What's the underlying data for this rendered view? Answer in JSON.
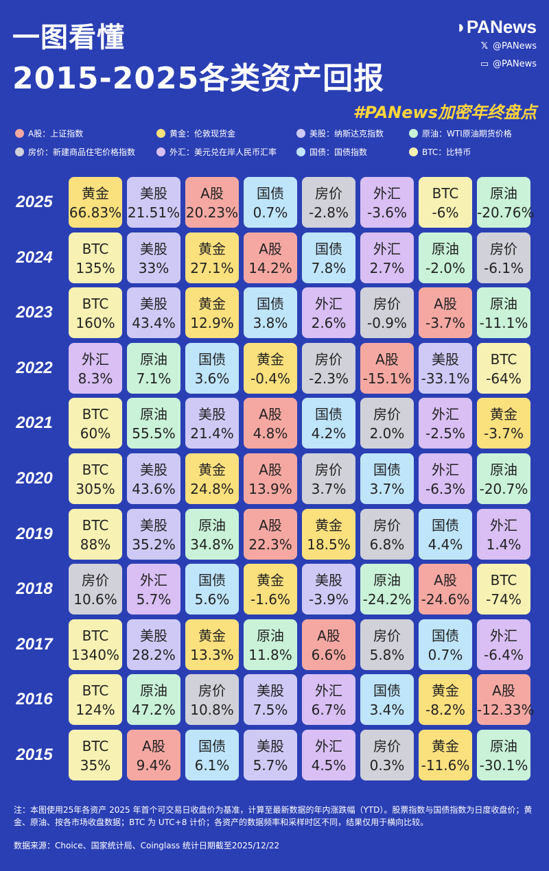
{
  "header": {
    "title_line1": "一图看懂",
    "title_line2": "2015-2025各类资产回报",
    "brand": "PANews",
    "social_x": "@PANews",
    "social_m": "@PANews",
    "hashtag": "#PANews加密年终盘点"
  },
  "colors": {
    "background": "#2a3fb4",
    "黄金": "#fbe07e",
    "美股": "#cfc9f6",
    "A股": "#f5a8a2",
    "国债": "#bfe5fb",
    "房价": "#d1d1d9",
    "外汇": "#d9bff4",
    "BTC": "#f7f2b3",
    "原油": "#c9f2d8"
  },
  "legend": [
    {
      "key": "A股",
      "label": "A股：上证指数"
    },
    {
      "key": "黄金",
      "label": "黄金：伦敦现货金"
    },
    {
      "key": "美股",
      "label": "美股：纳斯达克指数"
    },
    {
      "key": "原油",
      "label": "原油：WTI原油期货价格"
    },
    {
      "key": "房价",
      "label": "房价：新建商品住宅价格指数"
    },
    {
      "key": "外汇",
      "label": "外汇：美元兑在岸人民币汇率"
    },
    {
      "key": "国债",
      "label": "国债：国债指数"
    },
    {
      "key": "BTC",
      "label": "BTC：比特币"
    }
  ],
  "chart_data": {
    "type": "table",
    "title": "2015-2025各类资产回报",
    "rows": [
      {
        "year": "2025",
        "cells": [
          {
            "asset": "黄金",
            "value": "66.83%"
          },
          {
            "asset": "美股",
            "value": "21.51%"
          },
          {
            "asset": "A股",
            "value": "20.23%"
          },
          {
            "asset": "国债",
            "value": "0.7%"
          },
          {
            "asset": "房价",
            "value": "-2.8%"
          },
          {
            "asset": "外汇",
            "value": "-3.6%"
          },
          {
            "asset": "BTC",
            "value": "-6%"
          },
          {
            "asset": "原油",
            "value": "-20.76%"
          }
        ]
      },
      {
        "year": "2024",
        "cells": [
          {
            "asset": "BTC",
            "value": "135%"
          },
          {
            "asset": "美股",
            "value": "33%"
          },
          {
            "asset": "黄金",
            "value": "27.1%"
          },
          {
            "asset": "A股",
            "value": "14.2%"
          },
          {
            "asset": "国债",
            "value": "7.8%"
          },
          {
            "asset": "外汇",
            "value": "2.7%"
          },
          {
            "asset": "原油",
            "value": "-2.0%"
          },
          {
            "asset": "房价",
            "value": "-6.1%"
          }
        ]
      },
      {
        "year": "2023",
        "cells": [
          {
            "asset": "BTC",
            "value": "160%"
          },
          {
            "asset": "美股",
            "value": "43.4%"
          },
          {
            "asset": "黄金",
            "value": "12.9%"
          },
          {
            "asset": "国债",
            "value": "3.8%"
          },
          {
            "asset": "外汇",
            "value": "2.6%"
          },
          {
            "asset": "房价",
            "value": "-0.9%"
          },
          {
            "asset": "A股",
            "value": "-3.7%"
          },
          {
            "asset": "原油",
            "value": "-11.1%"
          }
        ]
      },
      {
        "year": "2022",
        "cells": [
          {
            "asset": "外汇",
            "value": "8.3%"
          },
          {
            "asset": "原油",
            "value": "7.1%"
          },
          {
            "asset": "国债",
            "value": "3.6%"
          },
          {
            "asset": "黄金",
            "value": "-0.4%"
          },
          {
            "asset": "房价",
            "value": "-2.3%"
          },
          {
            "asset": "A股",
            "value": "-15.1%"
          },
          {
            "asset": "美股",
            "value": "-33.1%"
          },
          {
            "asset": "BTC",
            "value": "-64%"
          }
        ]
      },
      {
        "year": "2021",
        "cells": [
          {
            "asset": "BTC",
            "value": "60%"
          },
          {
            "asset": "原油",
            "value": "55.5%"
          },
          {
            "asset": "美股",
            "value": "21.4%"
          },
          {
            "asset": "A股",
            "value": "4.8%"
          },
          {
            "asset": "国债",
            "value": "4.2%"
          },
          {
            "asset": "房价",
            "value": "2.0%"
          },
          {
            "asset": "外汇",
            "value": "-2.5%"
          },
          {
            "asset": "黄金",
            "value": "-3.7%"
          }
        ]
      },
      {
        "year": "2020",
        "cells": [
          {
            "asset": "BTC",
            "value": "305%"
          },
          {
            "asset": "美股",
            "value": "43.6%"
          },
          {
            "asset": "黄金",
            "value": "24.8%"
          },
          {
            "asset": "A股",
            "value": "13.9%"
          },
          {
            "asset": "房价",
            "value": "3.7%"
          },
          {
            "asset": "国债",
            "value": "3.7%"
          },
          {
            "asset": "外汇",
            "value": "-6.3%"
          },
          {
            "asset": "原油",
            "value": "-20.7%"
          }
        ]
      },
      {
        "year": "2019",
        "cells": [
          {
            "asset": "BTC",
            "value": "88%"
          },
          {
            "asset": "美股",
            "value": "35.2%"
          },
          {
            "asset": "原油",
            "value": "34.8%"
          },
          {
            "asset": "A股",
            "value": "22.3%"
          },
          {
            "asset": "黄金",
            "value": "18.5%"
          },
          {
            "asset": "房价",
            "value": "6.8%"
          },
          {
            "asset": "国债",
            "value": "4.4%"
          },
          {
            "asset": "外汇",
            "value": "1.4%"
          }
        ]
      },
      {
        "year": "2018",
        "cells": [
          {
            "asset": "房价",
            "value": "10.6%"
          },
          {
            "asset": "外汇",
            "value": "5.7%"
          },
          {
            "asset": "国债",
            "value": "5.6%"
          },
          {
            "asset": "黄金",
            "value": "-1.6%"
          },
          {
            "asset": "美股",
            "value": "-3.9%"
          },
          {
            "asset": "原油",
            "value": "-24.2%"
          },
          {
            "asset": "A股",
            "value": "-24.6%"
          },
          {
            "asset": "BTC",
            "value": "-74%"
          }
        ]
      },
      {
        "year": "2017",
        "cells": [
          {
            "asset": "BTC",
            "value": "1340%"
          },
          {
            "asset": "美股",
            "value": "28.2%"
          },
          {
            "asset": "黄金",
            "value": "13.3%"
          },
          {
            "asset": "原油",
            "value": "11.8%"
          },
          {
            "asset": "A股",
            "value": "6.6%"
          },
          {
            "asset": "房价",
            "value": "5.8%"
          },
          {
            "asset": "国债",
            "value": "0.7%"
          },
          {
            "asset": "外汇",
            "value": "-6.4%"
          }
        ]
      },
      {
        "year": "2016",
        "cells": [
          {
            "asset": "BTC",
            "value": "124%"
          },
          {
            "asset": "原油",
            "value": "47.2%"
          },
          {
            "asset": "房价",
            "value": "10.8%"
          },
          {
            "asset": "美股",
            "value": "7.5%"
          },
          {
            "asset": "外汇",
            "value": "6.7%"
          },
          {
            "asset": "国债",
            "value": "3.4%"
          },
          {
            "asset": "黄金",
            "value": "-8.2%"
          },
          {
            "asset": "A股",
            "value": "-12.33%"
          }
        ]
      },
      {
        "year": "2015",
        "cells": [
          {
            "asset": "BTC",
            "value": "35%"
          },
          {
            "asset": "A股",
            "value": "9.4%"
          },
          {
            "asset": "国债",
            "value": "6.1%"
          },
          {
            "asset": "美股",
            "value": "5.7%"
          },
          {
            "asset": "外汇",
            "value": "4.5%"
          },
          {
            "asset": "房价",
            "value": "0.3%"
          },
          {
            "asset": "黄金",
            "value": "-11.6%"
          },
          {
            "asset": "原油",
            "value": "-30.1%"
          }
        ]
      }
    ]
  },
  "footer": {
    "note": "注：本图使用25年各资产 2025 年首个可交易日收盘价为基准，计算至最新数据的年内涨跌幅（YTD）。股票指数与国债指数为日度收盘价；黄金、原油、按各市场收盘数据；BTC 为 UTC+8 计价；各资产的数据频率和采样时区不同，结果仅用于横向比较。",
    "source": "数据来源：Choice、国家统计局、Coinglass  统计日期截至2025/12/22"
  }
}
